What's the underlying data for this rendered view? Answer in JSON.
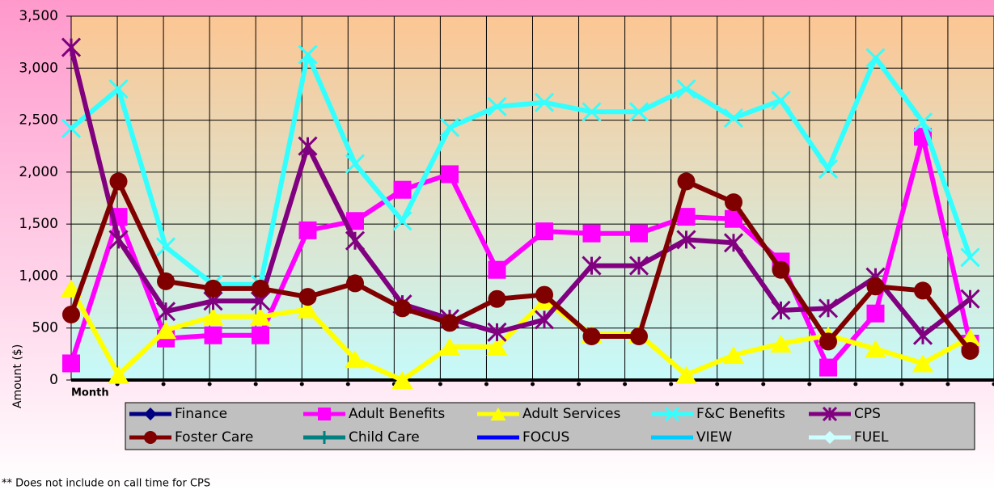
{
  "chart_data": {
    "type": "line",
    "x_label": "Month",
    "y_label": "Amount ($)",
    "footnote": "** Does not include on call time for CPS",
    "categories": [
      null,
      null,
      null,
      null,
      null,
      null,
      null,
      null,
      null,
      null,
      null,
      null,
      null,
      null,
      null,
      null,
      null,
      null,
      null,
      null
    ],
    "ylim": [
      0,
      3500
    ],
    "yticks": [
      0,
      500,
      {
        "value": 1000,
        "label": "1,000"
      },
      {
        "value": 1500,
        "label": "1,500"
      },
      {
        "value": 2000,
        "label": "2,000"
      },
      {
        "value": 2500,
        "label": "2,500"
      },
      {
        "value": 3000,
        "label": "3,000"
      },
      {
        "value": 3500,
        "label": "3,500"
      }
    ],
    "grid": true,
    "legend": "bottom",
    "series": [
      {
        "name": "Finance",
        "color": "#000080",
        "marker": "diamond",
        "values": [
          null,
          null,
          null,
          null,
          null,
          null,
          null,
          null,
          null,
          null,
          null,
          null,
          null,
          null,
          null,
          null,
          null,
          null,
          null,
          null
        ]
      },
      {
        "name": "Adult Benefits",
        "color": "#ff00ff",
        "marker": "square",
        "values": [
          160,
          1570,
          400,
          430,
          430,
          1440,
          1530,
          1830,
          1980,
          1060,
          1430,
          1410,
          1410,
          1570,
          1550,
          1140,
          120,
          640,
          2340,
          350
        ]
      },
      {
        "name": "Adult Services",
        "color": "#ffff00",
        "marker": "triangle",
        "values": [
          880,
          50,
          480,
          610,
          610,
          680,
          200,
          0,
          320,
          320,
          760,
          440,
          440,
          50,
          240,
          350,
          430,
          300,
          160,
          410
        ]
      },
      {
        "name": "F&C Benefits",
        "color": "#33ffff",
        "marker": "x",
        "values": [
          2420,
          2800,
          1280,
          920,
          920,
          3130,
          2080,
          1530,
          2430,
          2630,
          2670,
          2580,
          2580,
          2800,
          2520,
          2690,
          2030,
          3100,
          2480,
          1180
        ]
      },
      {
        "name": "CPS",
        "color": "#800080",
        "marker": "star",
        "values": [
          3200,
          1350,
          660,
          760,
          760,
          2250,
          1340,
          730,
          590,
          460,
          580,
          1100,
          1100,
          1350,
          1320,
          670,
          690,
          990,
          430,
          780
        ]
      },
      {
        "name": "Foster Care",
        "color": "#800000",
        "marker": "circle",
        "values": [
          630,
          1910,
          950,
          880,
          880,
          800,
          930,
          690,
          550,
          780,
          820,
          420,
          420,
          1910,
          1710,
          1060,
          370,
          900,
          860,
          280
        ]
      },
      {
        "name": "Child Care",
        "color": "#008080",
        "marker": "plus",
        "values": [
          null,
          null,
          null,
          null,
          null,
          null,
          null,
          null,
          null,
          null,
          null,
          null,
          null,
          null,
          null,
          null,
          null,
          null,
          null,
          null
        ]
      },
      {
        "name": "FOCUS",
        "color": "#0000ff",
        "marker": "none",
        "values": [
          null,
          null,
          null,
          null,
          null,
          null,
          null,
          null,
          null,
          null,
          null,
          null,
          null,
          null,
          null,
          null,
          null,
          null,
          null,
          null
        ]
      },
      {
        "name": "VIEW",
        "color": "#00ccff",
        "marker": "none",
        "values": [
          null,
          null,
          null,
          null,
          null,
          null,
          null,
          null,
          null,
          null,
          null,
          null,
          null,
          null,
          null,
          null,
          null,
          null,
          null,
          null
        ]
      },
      {
        "name": "FUEL",
        "color": "#ccffff",
        "marker": "diamond",
        "values": [
          null,
          null,
          null,
          null,
          null,
          null,
          null,
          null,
          null,
          null,
          null,
          null,
          null,
          null,
          null,
          null,
          null,
          null,
          null,
          null
        ]
      }
    ]
  }
}
